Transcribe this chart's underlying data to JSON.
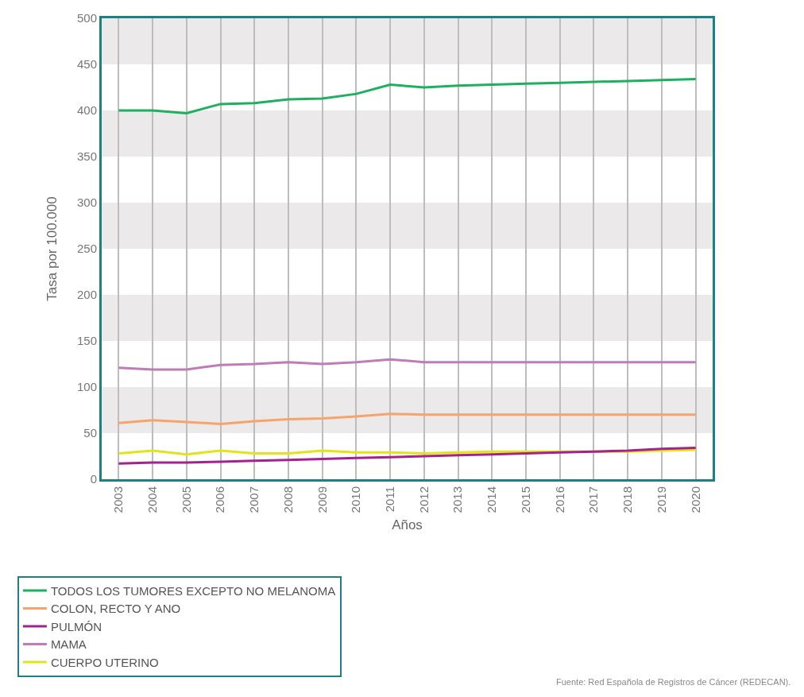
{
  "chart_data": {
    "type": "line",
    "xlabel": "Años",
    "ylabel": "Tasa por 100.000",
    "categories": [
      "2003",
      "2004",
      "2005",
      "2006",
      "2007",
      "2008",
      "2009",
      "2010",
      "2011",
      "2012",
      "2013",
      "2014",
      "2015",
      "2016",
      "2017",
      "2018",
      "2019",
      "2020"
    ],
    "series": [
      {
        "name": "TODOS LOS TUMORES EXCEPTO NO MELANOMA",
        "color": "#1db060",
        "values": [
          400,
          400,
          397,
          407,
          408,
          412,
          413,
          418,
          428,
          425,
          427,
          428,
          429,
          430,
          431,
          432,
          433,
          434
        ]
      },
      {
        "name": "COLON, RECTO Y ANO",
        "color": "#f7a36c",
        "values": [
          61,
          64,
          62,
          60,
          63,
          65,
          66,
          68,
          71,
          70,
          70,
          70,
          70,
          70,
          70,
          70,
          70,
          70
        ]
      },
      {
        "name": "PULMÓN",
        "color": "#a3228f",
        "values": [
          17,
          18,
          18,
          19,
          20,
          21,
          22,
          23,
          24,
          25,
          26,
          27,
          28,
          29,
          30,
          31,
          33,
          34
        ]
      },
      {
        "name": "MAMA",
        "color": "#c07cb8",
        "values": [
          121,
          119,
          119,
          124,
          125,
          127,
          125,
          127,
          130,
          127,
          127,
          127,
          127,
          127,
          127,
          127,
          127,
          127
        ]
      },
      {
        "name": "CUERPO UTERINO",
        "color": "#e3e31c",
        "values": [
          28,
          31,
          27,
          31,
          28,
          28,
          31,
          29,
          29,
          28,
          29,
          30,
          30,
          30,
          30,
          30,
          31,
          32
        ]
      }
    ],
    "ylim": [
      0,
      500
    ],
    "yticks": [
      0,
      50,
      100,
      150,
      200,
      250,
      300,
      350,
      400,
      450,
      500
    ],
    "bands": [
      {
        "axis": "y",
        "from": 50,
        "to": 100,
        "color": "#ebe9ea"
      },
      {
        "axis": "y",
        "from": 150,
        "to": 200,
        "color": "#ebe9ea"
      },
      {
        "axis": "y",
        "from": 250,
        "to": 300,
        "color": "#ebe9ea"
      },
      {
        "axis": "y",
        "from": 350,
        "to": 400,
        "color": "#ebe9ea"
      },
      {
        "axis": "y",
        "from": 450,
        "to": 500,
        "color": "#ebe9ea"
      }
    ],
    "grid": "x",
    "legend": "bottom left",
    "marker": "none",
    "line_style": "solid",
    "annotations": [
      "Fuente: Red Española de Registros de Cáncer (REDECAN)."
    ]
  }
}
